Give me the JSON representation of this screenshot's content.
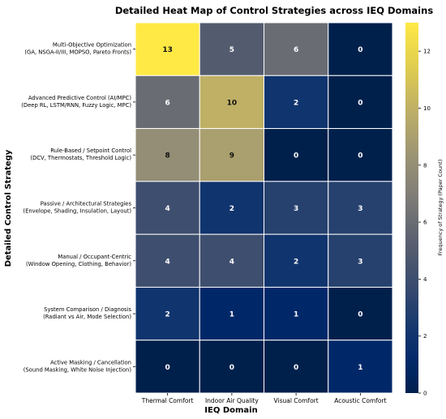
{
  "chart_data": {
    "type": "heatmap",
    "title": "Detailed Heat Map of Control Strategies across IEQ Domains",
    "xlabel": "IEQ Domain",
    "ylabel": "Detailed Control Strategy",
    "columns": [
      "Thermal Comfort",
      "Indoor Air Quality",
      "Visual Comfort",
      "Acoustic Comfort"
    ],
    "rows": [
      [
        "Multi-Objective Optimization",
        "(GA, NSGA-II/III, MOPSO, Pareto Fronts)"
      ],
      [
        "Advanced Predictive Control (AI/MPC)",
        "(Deep RL, LSTM/RNN, Fuzzy Logic, MPC)"
      ],
      [
        "Rule-Based / Setpoint Control",
        "(DCV, Thermostats, Threshold Logic)"
      ],
      [
        "Passive / Architectural Strategies",
        "(Envelope, Shading, Insulation, Layout)"
      ],
      [
        "Manual / Occupant-Centric",
        "(Window Opening, Clothing, Behavior)"
      ],
      [
        "System Comparison / Diagnosis",
        "(Radiant vs Air, Mode Selection)"
      ],
      [
        "Active Masking / Cancellation",
        "(Sound Masking, White Noise Injection)"
      ]
    ],
    "values": [
      [
        13,
        5,
        6,
        0
      ],
      [
        6,
        10,
        2,
        0
      ],
      [
        8,
        9,
        0,
        0
      ],
      [
        4,
        2,
        3,
        3
      ],
      [
        4,
        4,
        2,
        3
      ],
      [
        2,
        1,
        1,
        0
      ],
      [
        0,
        0,
        0,
        1
      ]
    ],
    "colormap": "cividis",
    "colorbar": {
      "label": "Frequency of Strategy (Paper Count)",
      "min": 0,
      "max": 13,
      "ticks": [
        0,
        2,
        4,
        6,
        8,
        10,
        12
      ]
    }
  }
}
